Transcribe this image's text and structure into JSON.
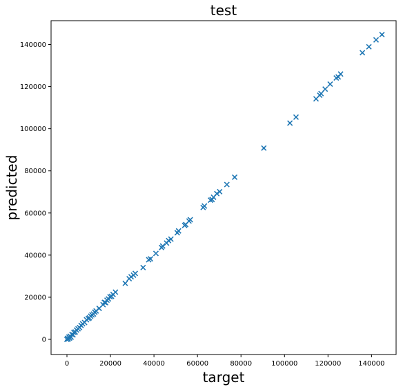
{
  "chart_data": {
    "type": "scatter",
    "title": "test",
    "xlabel": "target",
    "ylabel": "predicted",
    "xlim": [
      -7300,
      151300
    ],
    "ylim": [
      -7200,
      151300
    ],
    "xticks": [
      0,
      20000,
      40000,
      60000,
      80000,
      100000,
      120000,
      140000
    ],
    "yticks": [
      0,
      20000,
      40000,
      60000,
      80000,
      100000,
      120000,
      140000
    ],
    "grid": false,
    "marker": "x",
    "color": "#1f77b4",
    "points": [
      [
        0,
        0
      ],
      [
        300,
        500
      ],
      [
        600,
        200
      ],
      [
        900,
        1100
      ],
      [
        1200,
        600
      ],
      [
        1500,
        1500
      ],
      [
        1900,
        1000
      ],
      [
        2300,
        2300
      ],
      [
        2800,
        2100
      ],
      [
        3200,
        3300
      ],
      [
        3800,
        3500
      ],
      [
        4400,
        4400
      ],
      [
        5100,
        5000
      ],
      [
        5800,
        5600
      ],
      [
        6500,
        6600
      ],
      [
        7200,
        7400
      ],
      [
        8100,
        8000
      ],
      [
        9000,
        9300
      ],
      [
        9800,
        9900
      ],
      [
        10300,
        10200
      ],
      [
        10900,
        11000
      ],
      [
        11500,
        11600
      ],
      [
        12200,
        12000
      ],
      [
        12800,
        12900
      ],
      [
        13400,
        13500
      ],
      [
        14800,
        14700
      ],
      [
        16600,
        16500
      ],
      [
        17200,
        17600
      ],
      [
        17800,
        17400
      ],
      [
        18400,
        18600
      ],
      [
        19100,
        19200
      ],
      [
        19800,
        20200
      ],
      [
        20500,
        20400
      ],
      [
        21200,
        21300
      ],
      [
        22300,
        22400
      ],
      [
        26800,
        26600
      ],
      [
        28600,
        28800
      ],
      [
        29500,
        29700
      ],
      [
        30600,
        30500
      ],
      [
        31400,
        31300
      ],
      [
        35000,
        34100
      ],
      [
        37600,
        37800
      ],
      [
        38400,
        38200
      ],
      [
        40900,
        40800
      ],
      [
        43500,
        43600
      ],
      [
        44000,
        44300
      ],
      [
        45800,
        45700
      ],
      [
        46700,
        46900
      ],
      [
        47800,
        47600
      ],
      [
        50700,
        50600
      ],
      [
        51300,
        51500
      ],
      [
        54100,
        54100
      ],
      [
        54600,
        54500
      ],
      [
        56100,
        56200
      ],
      [
        56700,
        56800
      ],
      [
        62600,
        62600
      ],
      [
        63200,
        63300
      ],
      [
        66000,
        66100
      ],
      [
        66700,
        66400
      ],
      [
        67400,
        67500
      ],
      [
        68900,
        69200
      ],
      [
        70200,
        70100
      ],
      [
        73500,
        73500
      ],
      [
        77100,
        77000
      ],
      [
        90500,
        90800
      ],
      [
        102500,
        102700
      ],
      [
        105300,
        105500
      ],
      [
        114500,
        114200
      ],
      [
        116200,
        115900
      ],
      [
        116800,
        116700
      ],
      [
        118700,
        118800
      ],
      [
        121000,
        121200
      ],
      [
        123800,
        124100
      ],
      [
        124700,
        124600
      ],
      [
        125800,
        126000
      ],
      [
        135800,
        136100
      ],
      [
        138800,
        138900
      ],
      [
        142100,
        142200
      ],
      [
        144800,
        144700
      ]
    ]
  }
}
